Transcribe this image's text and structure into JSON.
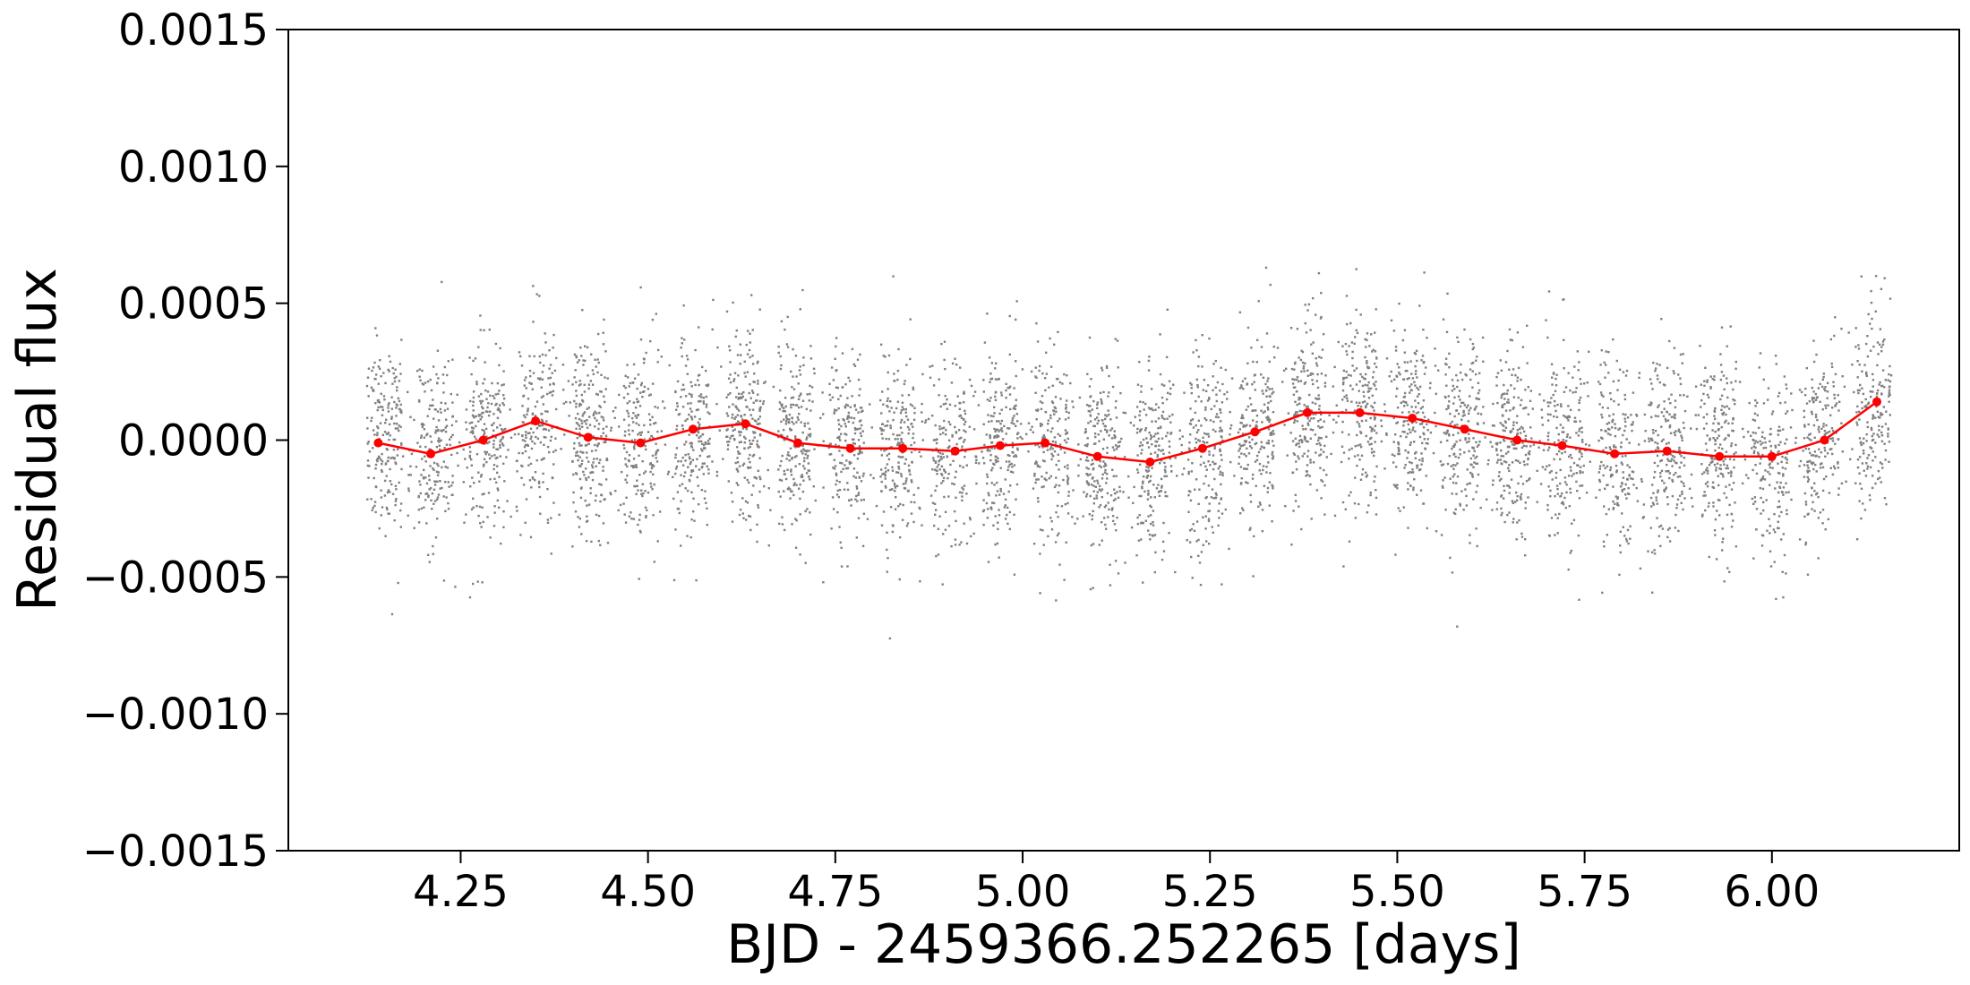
{
  "chart_data": {
    "type": "scatter",
    "xlabel": "BJD - 2459366.252265 [days]",
    "ylabel": "Residual flux",
    "xlim": [
      4.02,
      6.25
    ],
    "ylim": [
      -0.0015,
      0.0015
    ],
    "x_ticks": [
      4.25,
      4.5,
      4.75,
      5.0,
      5.25,
      5.5,
      5.75,
      6.0
    ],
    "x_tick_labels": [
      "4.25",
      "4.50",
      "4.75",
      "5.00",
      "5.25",
      "5.50",
      "5.75",
      "6.00"
    ],
    "y_ticks": [
      -0.0015,
      -0.001,
      -0.0005,
      0.0,
      0.0005,
      0.001,
      0.0015
    ],
    "y_tick_labels": [
      "−0.0015",
      "−0.0010",
      "−0.0005",
      "0.0000",
      "0.0005",
      "0.0010",
      "0.0015"
    ],
    "grid": false,
    "colors": {
      "raw": "#808080",
      "binned": "#ff0000"
    },
    "raw_points": {
      "x_start": 4.125,
      "x_end": 6.16,
      "scatter_std": 0.00018,
      "description_shown": "dense grey scatter of residual flux points in periodic clumps"
    },
    "series": [
      {
        "style": "binned-line",
        "x": [
          4.14,
          4.21,
          4.28,
          4.35,
          4.42,
          4.49,
          4.56,
          4.63,
          4.7,
          4.77,
          4.84,
          4.91,
          4.97,
          5.03,
          5.1,
          5.17,
          5.24,
          5.31,
          5.38,
          5.45,
          5.52,
          5.59,
          5.66,
          5.72,
          5.79,
          5.86,
          5.93,
          6.0,
          6.07,
          6.14
        ],
        "y": [
          -1e-05,
          -5e-05,
          0.0,
          7e-05,
          1e-05,
          -1e-05,
          4e-05,
          6e-05,
          -1e-05,
          -3e-05,
          -3e-05,
          -4e-05,
          -2e-05,
          -1e-05,
          -6e-05,
          -8e-05,
          -3e-05,
          3e-05,
          0.0001,
          0.0001,
          8e-05,
          4e-05,
          0.0,
          -2e-05,
          -5e-05,
          -4e-05,
          -6e-05,
          -6e-05,
          0.0,
          0.00014
        ]
      }
    ]
  }
}
